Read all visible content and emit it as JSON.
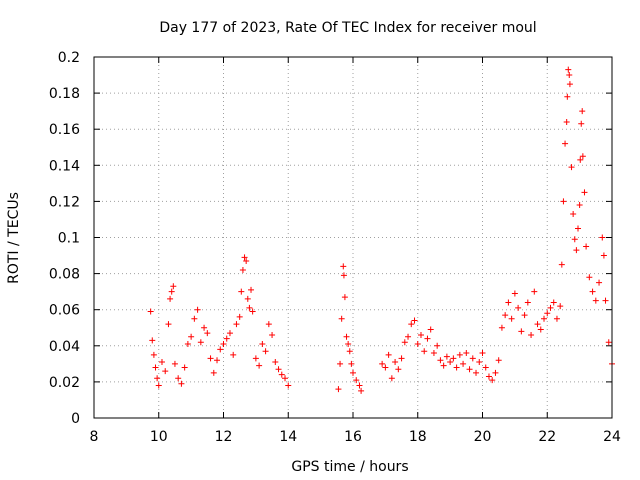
{
  "chart_data": {
    "type": "scatter",
    "title": "Day 177 of 2023, Rate Of TEC Index for receiver moul",
    "xlabel": "GPS time / hours",
    "ylabel": "ROTI / TECUs",
    "xlim": [
      8,
      24
    ],
    "ylim": [
      0,
      0.2
    ],
    "xticks": [
      8,
      10,
      12,
      14,
      16,
      18,
      20,
      22,
      24
    ],
    "xtick_labels": [
      "8",
      "10",
      "12",
      "14",
      "16",
      "18",
      "20",
      "22",
      "24"
    ],
    "yticks": [
      0,
      0.02,
      0.04,
      0.06,
      0.08,
      0.1,
      0.12,
      0.14,
      0.16,
      0.18,
      0.2
    ],
    "ytick_labels": [
      "0",
      "0.02",
      "0.04",
      "0.06",
      "0.08",
      "0.1",
      "0.12",
      "0.14",
      "0.16",
      "0.18",
      "0.2"
    ],
    "grid": true,
    "marker": "plus",
    "color": "#ff0000",
    "series": [
      {
        "points": [
          [
            9.75,
            0.059
          ],
          [
            9.8,
            0.043
          ],
          [
            9.85,
            0.035
          ],
          [
            9.9,
            0.028
          ],
          [
            9.95,
            0.022
          ],
          [
            10.0,
            0.018
          ],
          [
            10.1,
            0.031
          ],
          [
            10.2,
            0.026
          ],
          [
            10.3,
            0.052
          ],
          [
            10.35,
            0.066
          ],
          [
            10.4,
            0.07
          ],
          [
            10.45,
            0.073
          ],
          [
            10.5,
            0.03
          ],
          [
            10.6,
            0.022
          ],
          [
            10.7,
            0.019
          ],
          [
            10.8,
            0.028
          ],
          [
            10.9,
            0.041
          ],
          [
            11.0,
            0.045
          ],
          [
            11.1,
            0.055
          ],
          [
            11.2,
            0.06
          ],
          [
            11.3,
            0.042
          ],
          [
            11.4,
            0.05
          ],
          [
            11.5,
            0.047
          ],
          [
            11.6,
            0.033
          ],
          [
            11.7,
            0.025
          ],
          [
            11.8,
            0.032
          ],
          [
            11.9,
            0.038
          ],
          [
            12.0,
            0.041
          ],
          [
            12.1,
            0.044
          ],
          [
            12.2,
            0.047
          ],
          [
            12.3,
            0.035
          ],
          [
            12.4,
            0.052
          ],
          [
            12.5,
            0.056
          ],
          [
            12.55,
            0.07
          ],
          [
            12.6,
            0.082
          ],
          [
            12.65,
            0.089
          ],
          [
            12.7,
            0.087
          ],
          [
            12.75,
            0.066
          ],
          [
            12.8,
            0.061
          ],
          [
            12.85,
            0.071
          ],
          [
            12.9,
            0.059
          ],
          [
            13.0,
            0.033
          ],
          [
            13.1,
            0.029
          ],
          [
            13.2,
            0.041
          ],
          [
            13.3,
            0.037
          ],
          [
            13.4,
            0.052
          ],
          [
            13.5,
            0.046
          ],
          [
            13.6,
            0.031
          ],
          [
            13.7,
            0.027
          ],
          [
            13.8,
            0.024
          ],
          [
            13.9,
            0.022
          ],
          [
            14.0,
            0.018
          ],
          [
            15.55,
            0.016
          ],
          [
            15.6,
            0.03
          ],
          [
            15.65,
            0.055
          ],
          [
            15.7,
            0.084
          ],
          [
            15.72,
            0.079
          ],
          [
            15.75,
            0.067
          ],
          [
            15.8,
            0.045
          ],
          [
            15.85,
            0.041
          ],
          [
            15.9,
            0.037
          ],
          [
            15.95,
            0.03
          ],
          [
            16.0,
            0.025
          ],
          [
            16.1,
            0.021
          ],
          [
            16.2,
            0.018
          ],
          [
            16.25,
            0.015
          ],
          [
            16.9,
            0.03
          ],
          [
            17.0,
            0.028
          ],
          [
            17.1,
            0.035
          ],
          [
            17.2,
            0.022
          ],
          [
            17.3,
            0.031
          ],
          [
            17.4,
            0.027
          ],
          [
            17.5,
            0.033
          ],
          [
            17.6,
            0.042
          ],
          [
            17.7,
            0.045
          ],
          [
            17.8,
            0.052
          ],
          [
            17.9,
            0.054
          ],
          [
            18.0,
            0.041
          ],
          [
            18.1,
            0.046
          ],
          [
            18.2,
            0.037
          ],
          [
            18.3,
            0.044
          ],
          [
            18.4,
            0.049
          ],
          [
            18.5,
            0.036
          ],
          [
            18.6,
            0.04
          ],
          [
            18.7,
            0.032
          ],
          [
            18.8,
            0.029
          ],
          [
            18.9,
            0.034
          ],
          [
            19.0,
            0.031
          ],
          [
            19.1,
            0.033
          ],
          [
            19.2,
            0.028
          ],
          [
            19.3,
            0.035
          ],
          [
            19.4,
            0.03
          ],
          [
            19.5,
            0.036
          ],
          [
            19.6,
            0.027
          ],
          [
            19.7,
            0.033
          ],
          [
            19.8,
            0.025
          ],
          [
            19.9,
            0.031
          ],
          [
            20.0,
            0.036
          ],
          [
            20.1,
            0.028
          ],
          [
            20.2,
            0.023
          ],
          [
            20.3,
            0.021
          ],
          [
            20.4,
            0.025
          ],
          [
            20.5,
            0.032
          ],
          [
            20.6,
            0.05
          ],
          [
            20.7,
            0.057
          ],
          [
            20.8,
            0.064
          ],
          [
            20.9,
            0.055
          ],
          [
            21.0,
            0.069
          ],
          [
            21.1,
            0.061
          ],
          [
            21.2,
            0.048
          ],
          [
            21.3,
            0.057
          ],
          [
            21.4,
            0.064
          ],
          [
            21.5,
            0.046
          ],
          [
            21.6,
            0.07
          ],
          [
            21.7,
            0.052
          ],
          [
            21.8,
            0.049
          ],
          [
            21.9,
            0.055
          ],
          [
            22.0,
            0.058
          ],
          [
            22.1,
            0.061
          ],
          [
            22.2,
            0.064
          ],
          [
            22.3,
            0.055
          ],
          [
            22.4,
            0.062
          ],
          [
            22.45,
            0.085
          ],
          [
            22.5,
            0.12
          ],
          [
            22.55,
            0.152
          ],
          [
            22.6,
            0.164
          ],
          [
            22.62,
            0.178
          ],
          [
            22.65,
            0.193
          ],
          [
            22.68,
            0.19
          ],
          [
            22.7,
            0.185
          ],
          [
            22.75,
            0.139
          ],
          [
            22.8,
            0.113
          ],
          [
            22.85,
            0.099
          ],
          [
            22.9,
            0.093
          ],
          [
            22.95,
            0.105
          ],
          [
            23.0,
            0.118
          ],
          [
            23.02,
            0.143
          ],
          [
            23.05,
            0.163
          ],
          [
            23.08,
            0.17
          ],
          [
            23.1,
            0.145
          ],
          [
            23.15,
            0.125
          ],
          [
            23.2,
            0.095
          ],
          [
            23.3,
            0.078
          ],
          [
            23.4,
            0.07
          ],
          [
            23.5,
            0.065
          ],
          [
            23.6,
            0.075
          ],
          [
            23.7,
            0.1
          ],
          [
            23.75,
            0.09
          ],
          [
            23.8,
            0.065
          ],
          [
            23.9,
            0.042
          ],
          [
            24.0,
            0.03
          ]
        ]
      }
    ]
  }
}
